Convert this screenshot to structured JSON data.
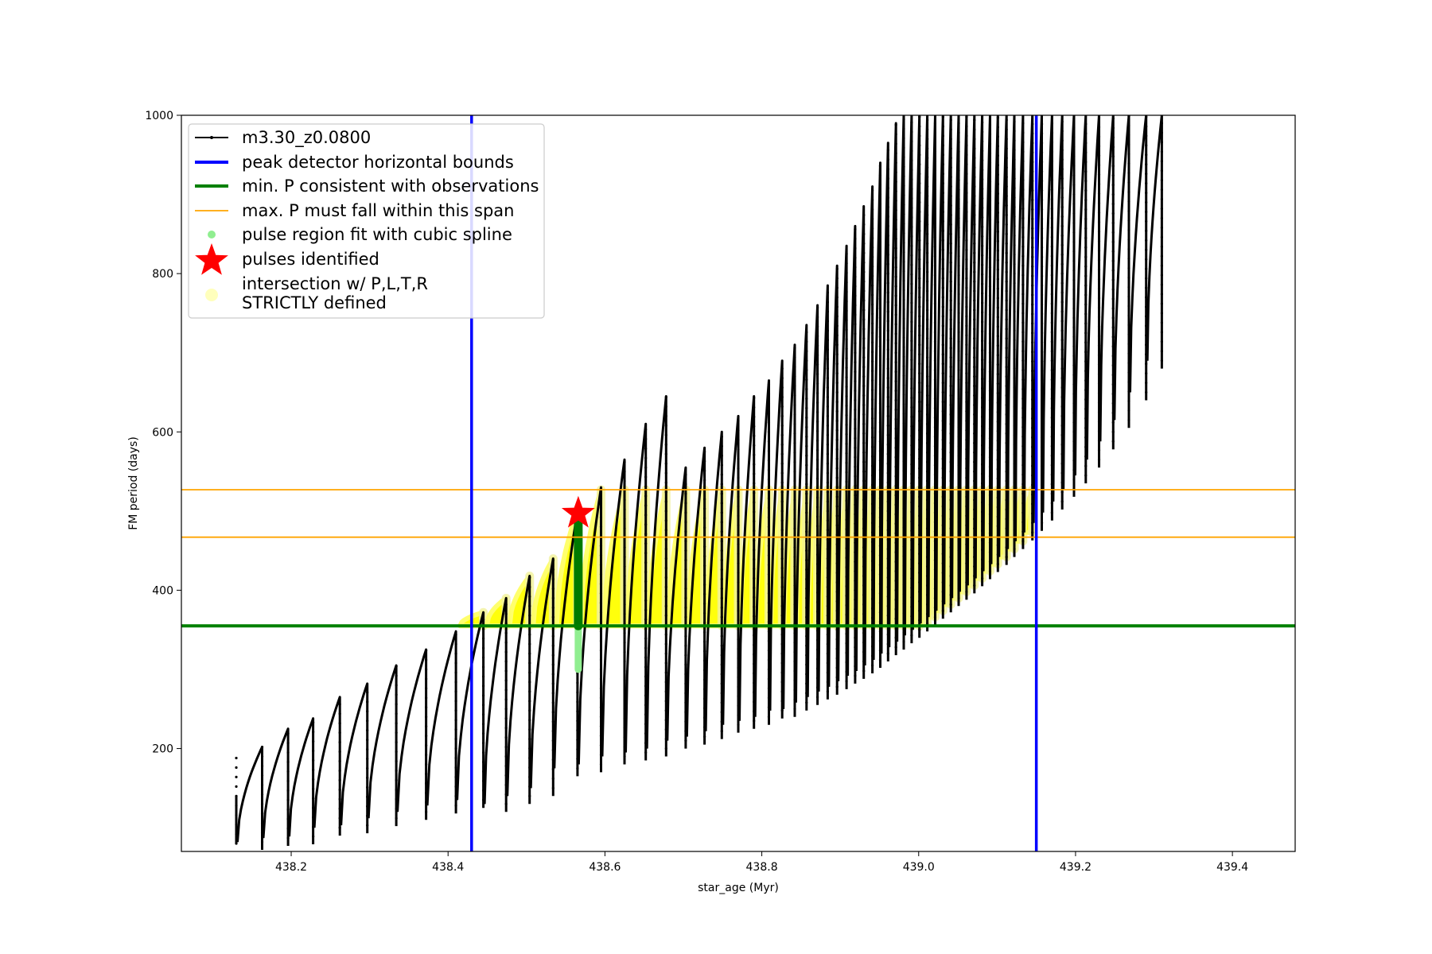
{
  "chart_data": {
    "type": "line",
    "title": "",
    "xlabel": "star_age (Myr)",
    "ylabel": "FM period (days)",
    "xlim": [
      438.06,
      439.48
    ],
    "ylim": [
      70,
      1000
    ],
    "xticks": [
      438.2,
      438.4,
      438.6,
      438.8,
      439.0,
      439.2,
      439.4
    ],
    "xtick_labels": [
      "438.2",
      "438.4",
      "438.6",
      "438.8",
      "439.0",
      "439.2",
      "439.4"
    ],
    "yticks": [
      200,
      400,
      600,
      800,
      1000
    ],
    "ytick_labels": [
      "200",
      "400",
      "600",
      "800",
      "1000"
    ],
    "grid": false,
    "legend_position": "upper-left",
    "legend": [
      {
        "label": "m3.30_z0.0800",
        "style": "black-line-dots",
        "color": "#000000"
      },
      {
        "label": "peak detector horizontal bounds",
        "style": "line",
        "color": "#0000ff"
      },
      {
        "label": "min. P consistent with observations",
        "style": "line",
        "color": "#008000"
      },
      {
        "label": "max. P must fall within this span",
        "style": "thin-line",
        "color": "#ffa500"
      },
      {
        "label": "pulse region fit with cubic spline",
        "style": "dot",
        "color": "#90ee90"
      },
      {
        "label": "pulses identified",
        "style": "star",
        "color": "#ff0000"
      },
      {
        "label": "intersection w/ P,L,T,R",
        "label2": "STRICTLY defined",
        "style": "pale-circle",
        "color": "#ffffa0"
      }
    ],
    "series_name": "m3.30_z0.0800",
    "pulse_sequence": {
      "start_age": 438.13,
      "pulses": [
        {
          "age": 438.13,
          "min": 80,
          "peak": 198
        },
        {
          "age": 438.163,
          "min": 82,
          "peak": 202
        },
        {
          "age": 438.196,
          "min": 87,
          "peak": 225
        },
        {
          "age": 438.228,
          "min": 89,
          "peak": 238
        },
        {
          "age": 438.262,
          "min": 100,
          "peak": 265
        },
        {
          "age": 438.297,
          "min": 103,
          "peak": 282
        },
        {
          "age": 438.334,
          "min": 112,
          "peak": 305
        },
        {
          "age": 438.372,
          "min": 120,
          "peak": 325
        },
        {
          "age": 438.41,
          "min": 128,
          "peak": 348
        },
        {
          "age": 438.445,
          "min": 135,
          "peak": 372
        },
        {
          "age": 438.474,
          "min": 130,
          "peak": 390
        },
        {
          "age": 438.504,
          "min": 140,
          "peak": 418
        },
        {
          "age": 438.534,
          "min": 150,
          "peak": 440
        },
        {
          "age": 438.565,
          "min": 175,
          "peak": 500
        },
        {
          "age": 438.595,
          "min": 180,
          "peak": 530
        },
        {
          "age": 438.625,
          "min": 190,
          "peak": 565
        },
        {
          "age": 438.652,
          "min": 195,
          "peak": 610
        },
        {
          "age": 438.678,
          "min": 200,
          "peak": 645
        },
        {
          "age": 438.703,
          "min": 210,
          "peak": 555
        },
        {
          "age": 438.727,
          "min": 215,
          "peak": 580
        },
        {
          "age": 438.749,
          "min": 222,
          "peak": 600
        },
        {
          "age": 438.77,
          "min": 230,
          "peak": 620
        },
        {
          "age": 438.79,
          "min": 235,
          "peak": 645
        },
        {
          "age": 438.809,
          "min": 240,
          "peak": 665
        },
        {
          "age": 438.826,
          "min": 248,
          "peak": 690
        },
        {
          "age": 438.842,
          "min": 250,
          "peak": 710
        },
        {
          "age": 438.857,
          "min": 258,
          "peak": 735
        },
        {
          "age": 438.871,
          "min": 265,
          "peak": 760
        },
        {
          "age": 438.884,
          "min": 272,
          "peak": 785
        },
        {
          "age": 438.896,
          "min": 278,
          "peak": 810
        },
        {
          "age": 438.908,
          "min": 285,
          "peak": 835
        },
        {
          "age": 438.919,
          "min": 292,
          "peak": 860
        },
        {
          "age": 438.93,
          "min": 298,
          "peak": 885
        },
        {
          "age": 438.941,
          "min": 305,
          "peak": 910
        },
        {
          "age": 438.951,
          "min": 312,
          "peak": 940
        },
        {
          "age": 438.961,
          "min": 320,
          "peak": 965
        },
        {
          "age": 438.971,
          "min": 328,
          "peak": 990
        },
        {
          "age": 438.981,
          "min": 335,
          "peak": 1000
        },
        {
          "age": 438.991,
          "min": 343,
          "peak": 1000
        },
        {
          "age": 439.001,
          "min": 350,
          "peak": 1000
        },
        {
          "age": 439.011,
          "min": 358,
          "peak": 1000
        },
        {
          "age": 439.021,
          "min": 366,
          "peak": 1000
        },
        {
          "age": 439.031,
          "min": 374,
          "peak": 1000
        },
        {
          "age": 439.041,
          "min": 382,
          "peak": 1000
        },
        {
          "age": 439.051,
          "min": 390,
          "peak": 1000
        },
        {
          "age": 439.061,
          "min": 398,
          "peak": 1000
        },
        {
          "age": 439.071,
          "min": 406,
          "peak": 1000
        },
        {
          "age": 439.081,
          "min": 415,
          "peak": 1000
        },
        {
          "age": 439.091,
          "min": 424,
          "peak": 1000
        },
        {
          "age": 439.101,
          "min": 433,
          "peak": 1000
        },
        {
          "age": 439.112,
          "min": 442,
          "peak": 1000
        },
        {
          "age": 439.122,
          "min": 452,
          "peak": 1000
        },
        {
          "age": 439.133,
          "min": 462,
          "peak": 1000
        },
        {
          "age": 439.145,
          "min": 473,
          "peak": 1000
        },
        {
          "age": 439.157,
          "min": 485,
          "peak": 1000
        },
        {
          "age": 439.17,
          "min": 498,
          "peak": 1000
        },
        {
          "age": 439.183,
          "min": 512,
          "peak": 1000
        },
        {
          "age": 439.198,
          "min": 528,
          "peak": 1000
        },
        {
          "age": 439.213,
          "min": 545,
          "peak": 1000
        },
        {
          "age": 439.23,
          "min": 565,
          "peak": 1000
        },
        {
          "age": 439.248,
          "min": 588,
          "peak": 1000
        },
        {
          "age": 439.268,
          "min": 615,
          "peak": 1000
        },
        {
          "age": 439.29,
          "min": 650,
          "peak": 1000
        },
        {
          "age": 439.31,
          "min": 690,
          "peak": 1000
        }
      ]
    },
    "blue_vlines_x": [
      438.43,
      439.15
    ],
    "green_hline_y": 355,
    "orange_hlines_y": [
      467,
      527
    ],
    "red_star": {
      "x": 438.566,
      "y": 497
    },
    "green_pulse_region": {
      "x": 438.566,
      "y_min": 300,
      "y_max": 497
    },
    "yellow_band": {
      "x_start": 438.43,
      "x_end": 439.15,
      "y_min": 355,
      "y_max": 527
    }
  }
}
